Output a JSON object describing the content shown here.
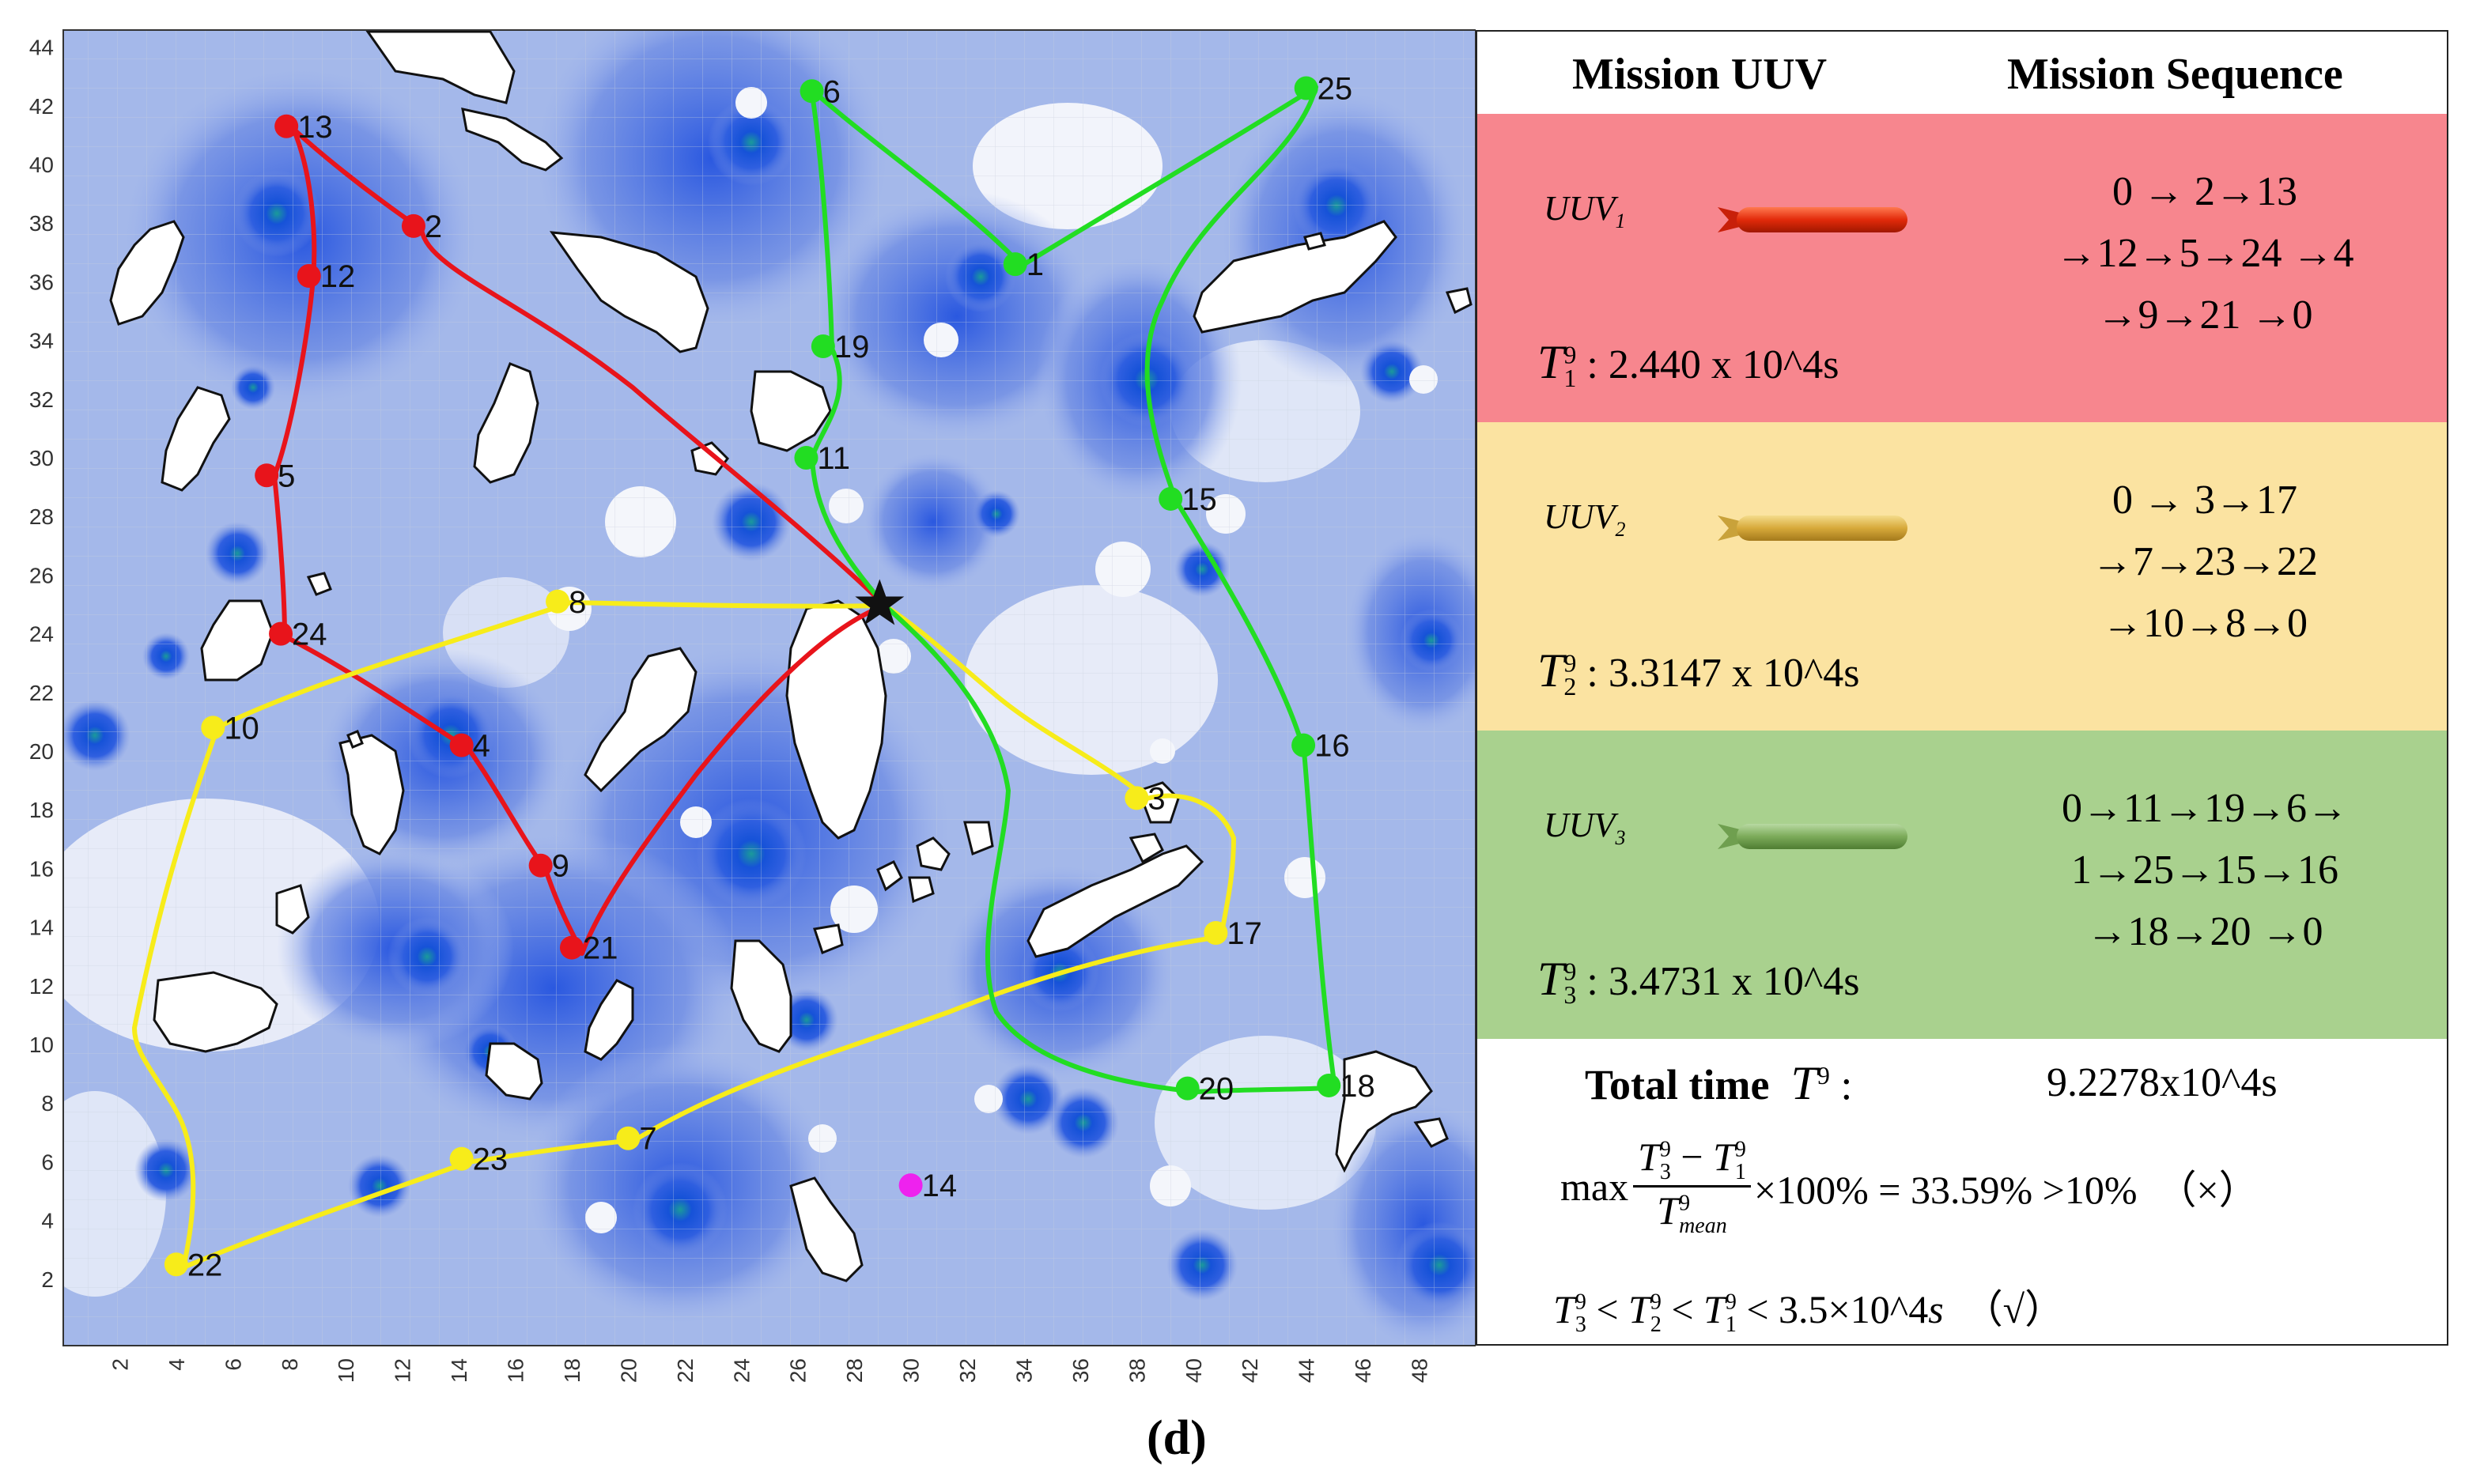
{
  "map": {
    "y_ticks": [
      "2",
      "4",
      "6",
      "8",
      "10",
      "12",
      "14",
      "16",
      "18",
      "20",
      "22",
      "24",
      "26",
      "28",
      "30",
      "32",
      "34",
      "36",
      "38",
      "40",
      "42",
      "44"
    ],
    "x_ticks": [
      "2",
      "4",
      "6",
      "8",
      "10",
      "12",
      "14",
      "16",
      "18",
      "20",
      "22",
      "24",
      "26",
      "28",
      "30",
      "32",
      "34",
      "36",
      "38",
      "40",
      "42",
      "44",
      "46",
      "48"
    ],
    "start_marker": "start-star",
    "route_colors": {
      "uuv1": "#e8141b",
      "uuv2": "#f7ec1a",
      "uuv3": "#22dd22",
      "unassigned": "#ee22ee"
    },
    "waypoints": [
      {
        "id": "1",
        "x": 33.7,
        "y": 36.6,
        "route": "uuv3"
      },
      {
        "id": "2",
        "x": 12.4,
        "y": 37.9,
        "route": "uuv1"
      },
      {
        "id": "3",
        "x": 38.0,
        "y": 18.4,
        "route": "uuv2"
      },
      {
        "id": "4",
        "x": 14.1,
        "y": 20.2,
        "route": "uuv1"
      },
      {
        "id": "5",
        "x": 7.2,
        "y": 29.4,
        "route": "uuv1"
      },
      {
        "id": "6",
        "x": 26.5,
        "y": 42.5,
        "route": "uuv3"
      },
      {
        "id": "7",
        "x": 20.0,
        "y": 6.8,
        "route": "uuv2"
      },
      {
        "id": "8",
        "x": 17.5,
        "y": 25.1,
        "route": "uuv2"
      },
      {
        "id": "9",
        "x": 16.9,
        "y": 16.1,
        "route": "uuv1"
      },
      {
        "id": "10",
        "x": 5.3,
        "y": 20.8,
        "route": "uuv2"
      },
      {
        "id": "11",
        "x": 26.3,
        "y": 30.0,
        "route": "uuv3"
      },
      {
        "id": "12",
        "x": 8.7,
        "y": 36.2,
        "route": "uuv1"
      },
      {
        "id": "13",
        "x": 7.9,
        "y": 41.3,
        "route": "uuv1"
      },
      {
        "id": "14",
        "x": 30.0,
        "y": 5.2,
        "route": "unassigned"
      },
      {
        "id": "15",
        "x": 39.2,
        "y": 28.6,
        "route": "uuv3"
      },
      {
        "id": "16",
        "x": 43.9,
        "y": 20.2,
        "route": "uuv3"
      },
      {
        "id": "17",
        "x": 40.8,
        "y": 13.8,
        "route": "uuv2"
      },
      {
        "id": "18",
        "x": 44.8,
        "y": 8.6,
        "route": "uuv3"
      },
      {
        "id": "19",
        "x": 26.9,
        "y": 33.8,
        "route": "uuv3"
      },
      {
        "id": "20",
        "x": 39.8,
        "y": 8.5,
        "route": "uuv3"
      },
      {
        "id": "21",
        "x": 18.0,
        "y": 13.3,
        "route": "uuv1"
      },
      {
        "id": "22",
        "x": 4.0,
        "y": 2.5,
        "route": "uuv2"
      },
      {
        "id": "23",
        "x": 14.1,
        "y": 6.1,
        "route": "uuv2"
      },
      {
        "id": "24",
        "x": 7.7,
        "y": 24.0,
        "route": "uuv1"
      },
      {
        "id": "25",
        "x": 44.0,
        "y": 42.6,
        "route": "uuv3"
      }
    ],
    "start": {
      "x": 28.9,
      "y": 25.0
    }
  },
  "table": {
    "header": {
      "col1": "Mission UUV",
      "col2": "Mission Sequence"
    },
    "rows": [
      {
        "uuv": "UUV",
        "uuv_sub": "1",
        "time_label": ": 2.440 x 10^4s",
        "time_sup": "9",
        "time_sub": "1",
        "seq": [
          "0 → 2→13",
          "→12→5→24 →4",
          "→9→21 →0"
        ],
        "bg": "#f7868e"
      },
      {
        "uuv": "UUV",
        "uuv_sub": "2",
        "time_label": ": 3.3147 x 10^4s",
        "time_sup": "9",
        "time_sub": "2",
        "seq": [
          "0 → 3→17",
          "→7→23→22",
          "→10→8→0"
        ],
        "bg": "#fbe3a1"
      },
      {
        "uuv": "UUV",
        "uuv_sub": "3",
        "time_label": ": 3.4731 x 10^4s",
        "time_sup": "9",
        "time_sub": "3",
        "seq": [
          "0→11→19→6→",
          "1→25→15→16",
          "→18→20 →0"
        ],
        "bg": "#a9d18e"
      }
    ],
    "total": {
      "label": "Total time",
      "symbol": "T",
      "symbol_sup": "9",
      "colon": ":",
      "value": "9.2278x10^4s"
    },
    "formula": {
      "max": "max",
      "num_a": "T",
      "num_a_sup": "9",
      "num_a_sub": "3",
      "minus": "−",
      "num_b": "T",
      "num_b_sup": "9",
      "num_b_sub": "1",
      "den": "T",
      "den_sup": "9",
      "den_sub": "mean",
      "tail": "×100% = 33.59% >10%",
      "mark": "（×）"
    },
    "condition": {
      "t3": "T",
      "t3_sup": "9",
      "t3_sub": "3",
      "t2": "T",
      "t2_sup": "9",
      "t2_sub": "2",
      "t1": "T",
      "t1_sup": "9",
      "t1_sub": "1",
      "lt": "<",
      "limit": "3.5×10^4",
      "unit": "s",
      "mark": "（√）"
    }
  },
  "caption": "(d)"
}
